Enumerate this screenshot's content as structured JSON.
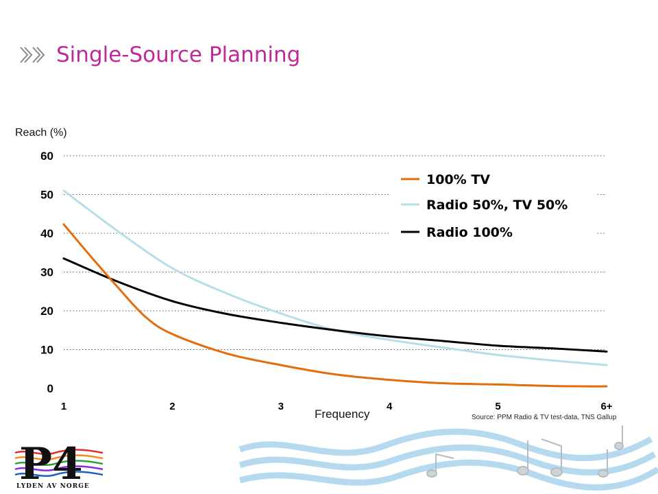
{
  "header": {
    "title": "Single-Source Planning",
    "icon": "double-chevron-right-icon"
  },
  "footer": {
    "source": "Source: PPM Radio & TV test-data, TNS Gallup",
    "logo_text": "LYDEN AV NORGE"
  },
  "colors": {
    "title": "#c0289a",
    "tv": "#e46c0a",
    "mixed": "#b7dde8",
    "radio": "#000000"
  },
  "chart_data": {
    "type": "line",
    "title": "",
    "ylabel": "Reach (%)",
    "xlabel": "Frequency",
    "categories": [
      "1",
      "2",
      "3",
      "4",
      "5",
      "6+"
    ],
    "ylim": [
      0,
      60
    ],
    "yticks": [
      "0",
      "10",
      "20",
      "30",
      "40",
      "50",
      "60"
    ],
    "grid": true,
    "legend": "top-right",
    "series": [
      {
        "name": "100% TV",
        "color": "#e46c0a",
        "x": [
          1,
          1.25,
          1.5,
          1.75,
          2,
          2.5,
          3,
          3.5,
          4,
          4.5,
          5,
          5.5,
          6
        ],
        "y": [
          42.3,
          34,
          26,
          18.5,
          14,
          9,
          6,
          3.6,
          2.2,
          1.3,
          1,
          0.6,
          0.5
        ]
      },
      {
        "name": "Radio 50%, TV 50%",
        "color": "#b7dde8",
        "x": [
          1,
          1.5,
          2,
          2.5,
          3,
          3.5,
          4,
          4.5,
          5,
          5.5,
          6
        ],
        "y": [
          51,
          40.5,
          31,
          24.5,
          19.3,
          15,
          12.5,
          10.5,
          8.6,
          7.2,
          6
        ]
      },
      {
        "name": "Radio 100%",
        "color": "#000000",
        "x": [
          1,
          1.5,
          2,
          2.5,
          3,
          3.5,
          4,
          4.5,
          5,
          5.5,
          6
        ],
        "y": [
          33.5,
          27.5,
          22.5,
          19.2,
          16.9,
          15,
          13.4,
          12.2,
          11,
          10.3,
          9.5
        ]
      }
    ]
  }
}
